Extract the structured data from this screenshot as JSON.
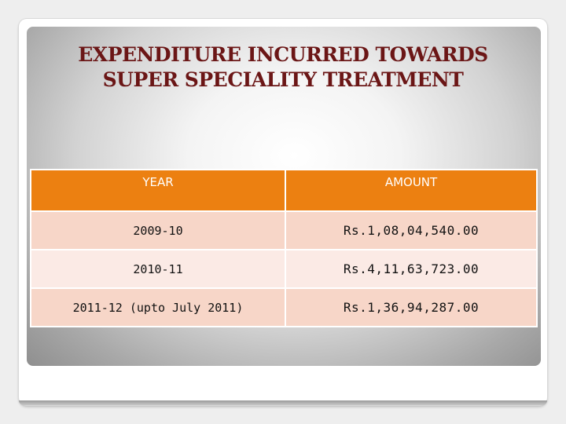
{
  "slide": {
    "title_line1": "EXPENDITURE INCURRED TOWARDS",
    "title_line2": "SUPER SPECIALITY TREATMENT"
  },
  "table": {
    "headers": [
      "YEAR",
      "AMOUNT"
    ],
    "rows": [
      {
        "year": "2009-10",
        "amount": "Rs.1,08,04,540.00"
      },
      {
        "year": "2010-11",
        "amount": "Rs.4,11,63,723.00"
      },
      {
        "year": "2011-12 (upto July 2011)",
        "amount": "Rs.1,36,94,287.00"
      }
    ]
  },
  "colors": {
    "title": "#6b1616",
    "header_bg": "#ec8011",
    "row_odd_bg": "#f7d6c8",
    "row_even_bg": "#fbeae5"
  }
}
